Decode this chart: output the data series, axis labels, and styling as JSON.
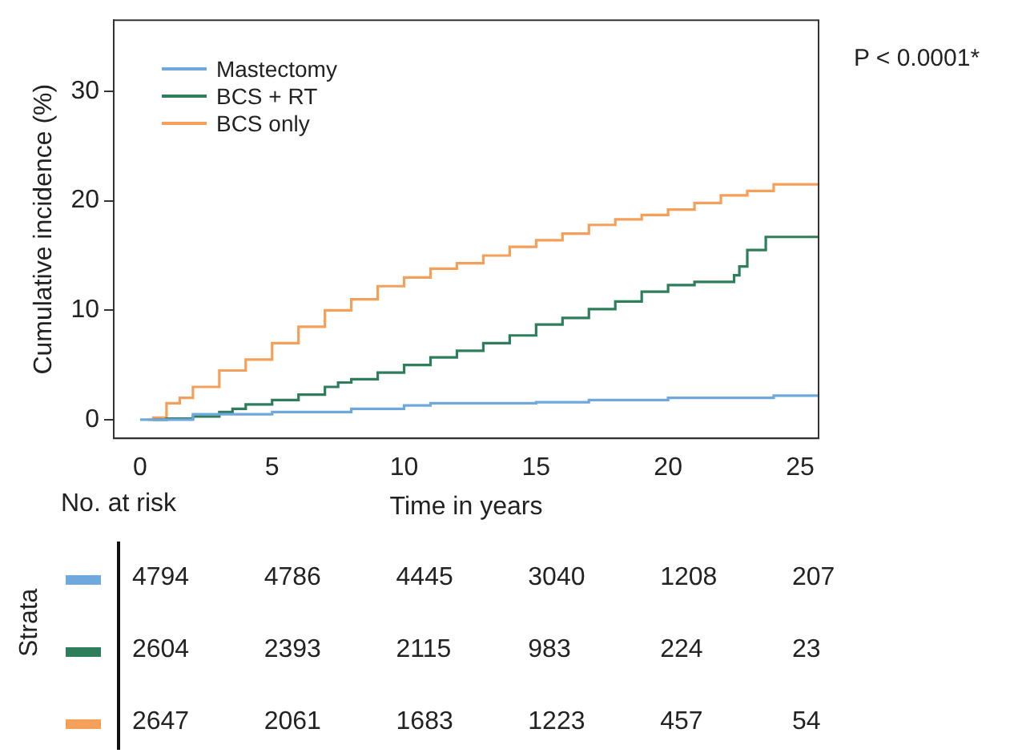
{
  "chart_data": {
    "type": "step",
    "ylabel": "Cumulative incidence (%)",
    "xlabel": "Time in years",
    "xlim": [
      -1,
      25.7
    ],
    "xticks": [
      0,
      5,
      10,
      15,
      20,
      25
    ],
    "ylim": [
      -1.7,
      36.5
    ],
    "yticks": [
      0,
      10,
      20,
      30
    ],
    "grid": false,
    "legend": "top left",
    "annotations": [
      "P < 0.0001*",
      "No. at risk",
      "Strata",
      "4794",
      "4786",
      "4445",
      "3040",
      "1208",
      "207",
      "2604",
      "2393",
      "2115",
      "983",
      "224",
      "23",
      "2647",
      "2061",
      "1683",
      "1223",
      "457",
      "54"
    ],
    "series": [
      {
        "name": "Mastectomy",
        "color": "#6fa8dc",
        "x": [
          0,
          2,
          5,
          8,
          10,
          11,
          15,
          17,
          20,
          24,
          25.7
        ],
        "values": [
          0,
          0.5,
          0.7,
          1.0,
          1.3,
          1.5,
          1.6,
          1.8,
          2.0,
          2.2,
          2.2
        ]
      },
      {
        "name": "BCS + RT",
        "color": "#2e7d5b",
        "x": [
          0.5,
          1,
          2,
          3,
          3.5,
          4,
          5,
          6,
          7,
          7.5,
          8,
          9,
          10,
          11,
          12,
          13,
          14,
          15,
          16,
          17,
          18,
          19,
          20,
          21,
          22.5,
          22.7,
          23,
          23.7,
          25.7
        ],
        "values": [
          0,
          0.1,
          0.3,
          0.7,
          1.0,
          1.4,
          1.8,
          2.3,
          3.0,
          3.4,
          3.7,
          4.3,
          5.0,
          5.7,
          6.3,
          7.0,
          7.7,
          8.7,
          9.3,
          10.1,
          10.8,
          11.7,
          12.3,
          12.6,
          13.2,
          14.0,
          15.5,
          16.7,
          16.7
        ]
      },
      {
        "name": "BCS only",
        "color": "#f4a05a",
        "x": [
          0.3,
          0.5,
          1,
          1.5,
          2,
          3,
          4,
          5,
          6,
          7,
          8,
          9,
          10,
          11,
          12,
          13,
          14,
          15,
          16,
          17,
          18,
          19,
          20,
          21,
          22,
          23,
          24,
          25.7
        ],
        "values": [
          0,
          0.2,
          1.5,
          2.0,
          3.0,
          4.5,
          5.5,
          7.0,
          8.5,
          10.0,
          11.0,
          12.2,
          13.0,
          13.8,
          14.3,
          15.0,
          15.8,
          16.4,
          17.0,
          17.8,
          18.3,
          18.7,
          19.2,
          19.8,
          20.5,
          20.9,
          21.5,
          21.5
        ]
      }
    ]
  }
}
